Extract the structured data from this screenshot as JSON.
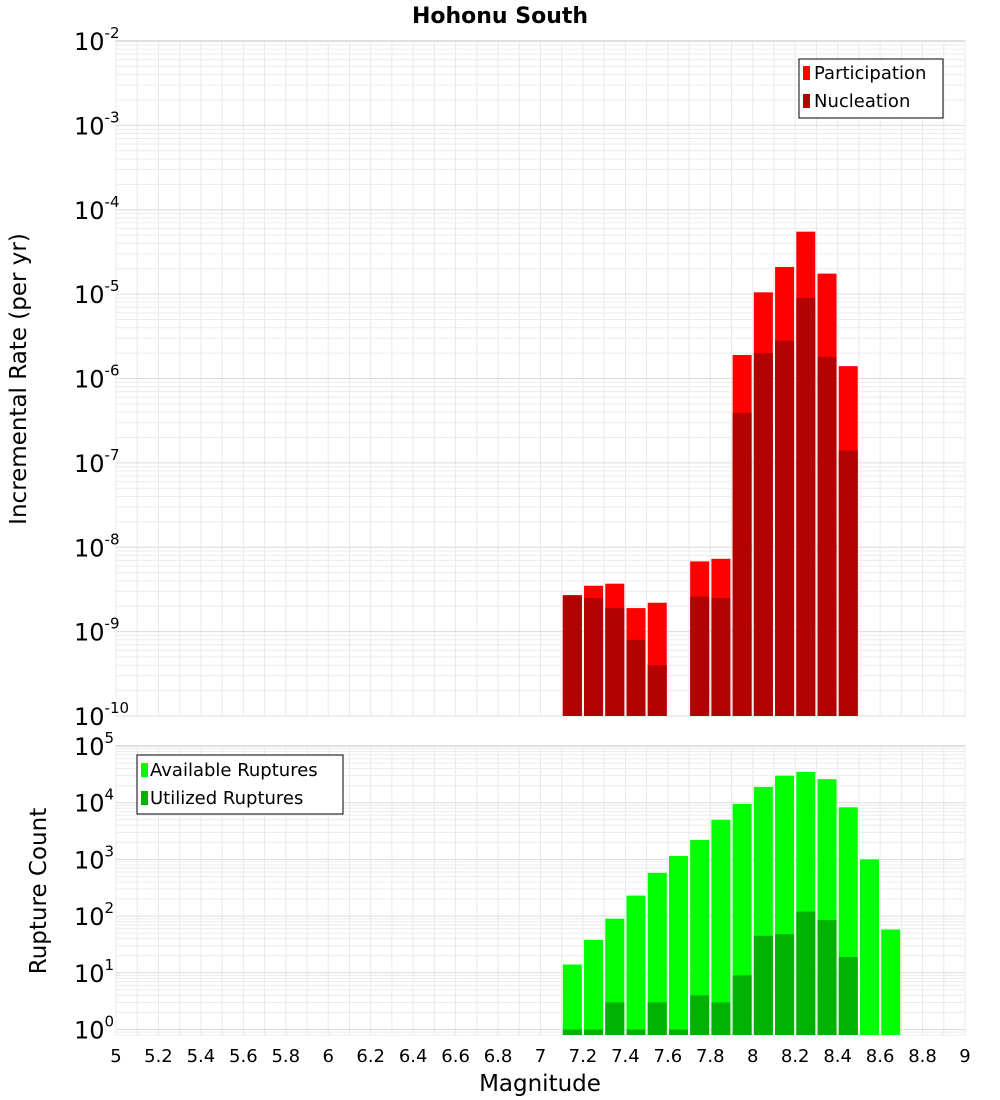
{
  "chart_data": [
    {
      "type": "bar",
      "title": "Hohonu South",
      "ylabel": "Incremental Rate (per yr)",
      "xlim": [
        5,
        9
      ],
      "ylim": [
        1e-10,
        0.01
      ],
      "yscale": "log",
      "grid": true,
      "legend_position": "top-right",
      "y_ticks": [
        {
          "base": "10",
          "exp": "-10",
          "value": 1e-10
        },
        {
          "base": "10",
          "exp": "-9",
          "value": 1e-09
        },
        {
          "base": "10",
          "exp": "-8",
          "value": 1e-08
        },
        {
          "base": "10",
          "exp": "-7",
          "value": 1e-07
        },
        {
          "base": "10",
          "exp": "-6",
          "value": 1e-06
        },
        {
          "base": "10",
          "exp": "-5",
          "value": 1e-05
        },
        {
          "base": "10",
          "exp": "-4",
          "value": 0.0001
        },
        {
          "base": "10",
          "exp": "-3",
          "value": 0.001
        },
        {
          "base": "10",
          "exp": "-2",
          "value": 0.01
        }
      ],
      "x": [
        7.15,
        7.25,
        7.35,
        7.45,
        7.55,
        7.75,
        7.85,
        7.95,
        8.05,
        8.15,
        8.25,
        8.35,
        8.45
      ],
      "series": [
        {
          "name": "Participation",
          "color": "#ff0000",
          "values": [
            2.7e-09,
            3.5e-09,
            3.7e-09,
            1.9e-09,
            2.2e-09,
            6.8e-09,
            7.3e-09,
            1.9e-06,
            1.05e-05,
            2.1e-05,
            5.5e-05,
            1.75e-05,
            1.4e-06
          ]
        },
        {
          "name": "Nucleation",
          "color": "#b30000",
          "values": [
            2.7e-09,
            2.5e-09,
            1.9e-09,
            8e-10,
            4e-10,
            2.6e-09,
            2.5e-09,
            3.9e-07,
            2e-06,
            2.8e-06,
            9e-06,
            1.8e-06,
            1.4e-07
          ]
        }
      ]
    },
    {
      "type": "bar",
      "xlabel": "Magnitude",
      "ylabel": "Rupture Count",
      "xlim": [
        5,
        9
      ],
      "ylim": [
        0.8,
        100000.0
      ],
      "yscale": "log",
      "grid": true,
      "legend_position": "top-left",
      "x_ticks": [
        "5",
        "5.2",
        "5.4",
        "5.6",
        "5.8",
        "6",
        "6.2",
        "6.4",
        "6.6",
        "6.8",
        "7",
        "7.2",
        "7.4",
        "7.6",
        "7.8",
        "8",
        "8.2",
        "8.4",
        "8.6",
        "8.8",
        "9"
      ],
      "y_ticks": [
        {
          "base": "10",
          "exp": "0",
          "value": 1
        },
        {
          "base": "10",
          "exp": "1",
          "value": 10
        },
        {
          "base": "10",
          "exp": "2",
          "value": 100
        },
        {
          "base": "10",
          "exp": "3",
          "value": 1000
        },
        {
          "base": "10",
          "exp": "4",
          "value": 10000
        },
        {
          "base": "10",
          "exp": "5",
          "value": 100000
        }
      ],
      "x": [
        7.15,
        7.25,
        7.35,
        7.45,
        7.55,
        7.65,
        7.75,
        7.85,
        7.95,
        8.05,
        8.15,
        8.25,
        8.35,
        8.45,
        8.55,
        8.65
      ],
      "series": [
        {
          "name": "Available Ruptures",
          "color": "#00ff00",
          "values": [
            14,
            38,
            90,
            230,
            580,
            1150,
            2200,
            5000,
            9500,
            19000,
            30000,
            35000,
            26000,
            8300,
            1000,
            58
          ]
        },
        {
          "name": "Utilized Ruptures",
          "color": "#00b200",
          "values": [
            1,
            1,
            3,
            1,
            3,
            1,
            4,
            3,
            9,
            45,
            48,
            120,
            85,
            19,
            0,
            0
          ]
        }
      ]
    }
  ]
}
